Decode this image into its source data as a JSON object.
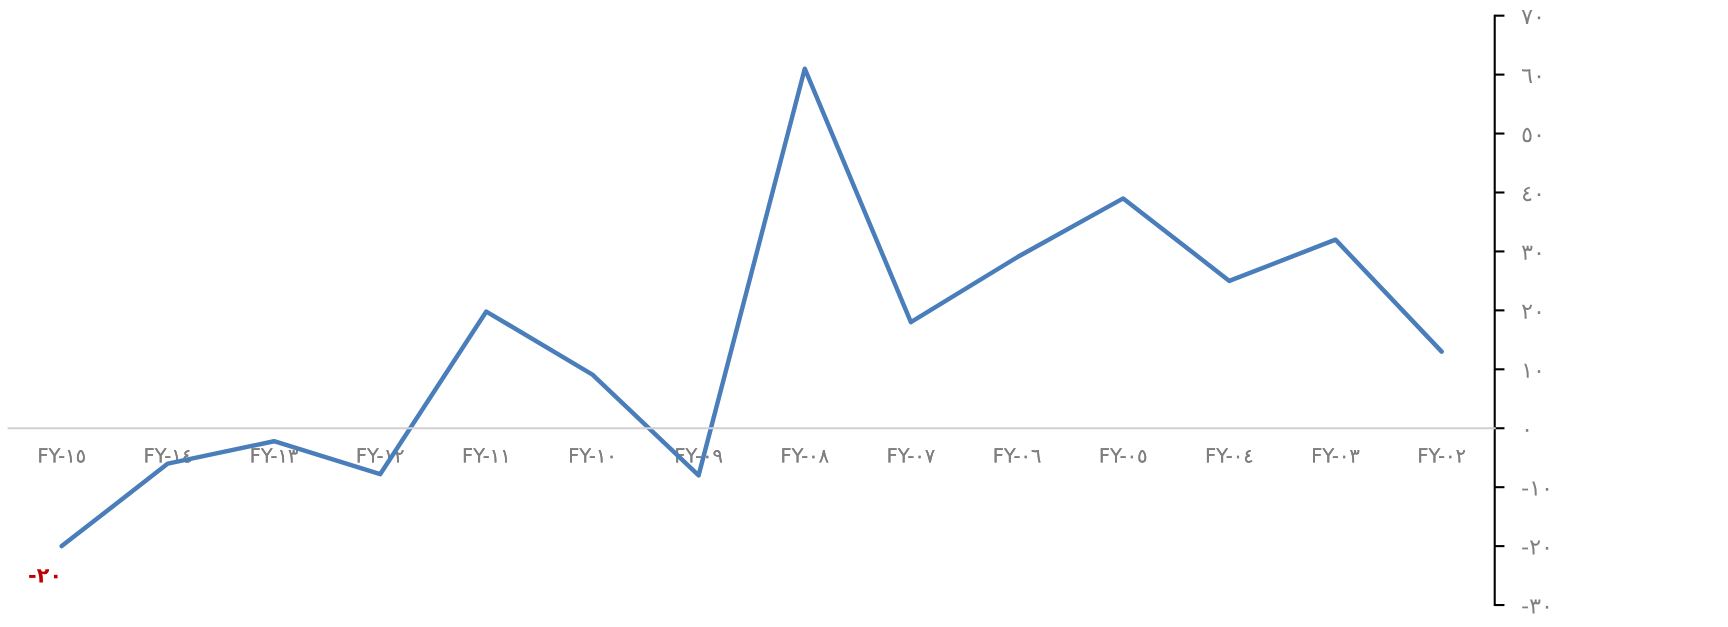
{
  "chart_data": {
    "type": "line",
    "categories": [
      "FY-١٥",
      "FY-١٤",
      "FY-١٣",
      "FY-١٢",
      "FY-١١",
      "FY-١٠",
      "FY-٠٩",
      "FY-٠٨",
      "FY-٠٧",
      "FY-٠٦",
      "FY-٠٥",
      "FY-٠٤",
      "FY-٠٣",
      "FY-٠٢"
    ],
    "series": [
      {
        "color": "#4a7ebb",
        "values": [
          -20,
          -6,
          -2.2,
          -7.8,
          19.8,
          9.1,
          -8,
          61,
          18,
          29,
          39,
          25,
          32,
          13
        ],
        "value_labels": [
          "-٢٠",
          null,
          null,
          null,
          null,
          null,
          null,
          null,
          null,
          null,
          null,
          null,
          null,
          null
        ]
      }
    ],
    "ylim": [
      -30,
      70
    ],
    "yticks": [
      {
        "value": -30,
        "label": "-٣٠"
      },
      {
        "value": -20,
        "label": "-٢٠"
      },
      {
        "value": -10,
        "label": "-١٠"
      },
      {
        "value": 0,
        "label": "٠"
      },
      {
        "value": 10,
        "label": "١٠"
      },
      {
        "value": 20,
        "label": "٢٠"
      },
      {
        "value": 30,
        "label": "٣٠"
      },
      {
        "value": 40,
        "label": "٤٠"
      },
      {
        "value": 50,
        "label": "٥٠"
      },
      {
        "value": 60,
        "label": "٦٠"
      },
      {
        "value": 70,
        "label": "٧٠"
      }
    ],
    "grid": false,
    "legend": false,
    "marker": "none",
    "line_style": "solid"
  }
}
